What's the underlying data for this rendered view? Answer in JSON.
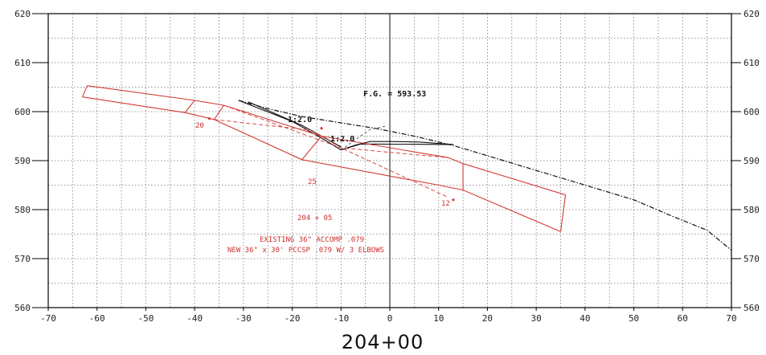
{
  "x_axis": {
    "min": -70,
    "max": 70,
    "step": 10,
    "ticks": [
      "-70",
      "-60",
      "-50",
      "-40",
      "-30",
      "-20",
      "-10",
      "0",
      "10",
      "20",
      "30",
      "40",
      "50",
      "60",
      "70"
    ]
  },
  "y_axis": {
    "min": 560,
    "max": 620,
    "step": 10,
    "ticks": [
      "560",
      "570",
      "580",
      "590",
      "600",
      "610",
      "620"
    ]
  },
  "station_label": "204+00",
  "annotations": {
    "fg": "F.G. = 593.53",
    "slope_upper": "1:2.0",
    "slope_lower": "1:2.0",
    "pt_20": "20",
    "pt_25": "25",
    "pt_12": "12",
    "station_sub": "204 + 05",
    "note_line1": "EXISTING 36\" ACCOMP .079",
    "note_line2": "NEW 36\" x 30' PCCSP .079 W/ 3 ELBOWS"
  },
  "ground_profile": [
    [
      -31,
      602.3
    ],
    [
      -25,
      600.6
    ],
    [
      -18,
      599.0
    ],
    [
      -10,
      597.7
    ],
    [
      -3,
      596.6
    ],
    [
      5,
      595.0
    ],
    [
      13,
      593.1
    ],
    [
      20,
      591.0
    ],
    [
      30,
      588.0
    ],
    [
      40,
      585.0
    ],
    [
      50,
      582.0
    ],
    [
      58,
      578.6
    ],
    [
      65,
      575.8
    ],
    [
      70,
      571.7
    ]
  ],
  "ditch_profile": [
    [
      -31,
      602.3
    ],
    [
      -20,
      598.0
    ],
    [
      -14,
      594.6
    ],
    [
      -10,
      592.2
    ],
    [
      -7,
      593.2
    ],
    [
      -4,
      593.9
    ],
    [
      0,
      593.9
    ],
    [
      6,
      593.8
    ],
    [
      13,
      593.3
    ]
  ],
  "pipe_existing": {
    "upper": [
      [
        -62,
        605.3
      ],
      [
        -40,
        602.3
      ],
      [
        -34,
        601.3
      ],
      [
        -14,
        595.0
      ],
      [
        12,
        590.6
      ],
      [
        15,
        589.4
      ],
      [
        36,
        583.0
      ]
    ],
    "lower": [
      [
        -63,
        603.0
      ],
      [
        -42,
        599.8
      ],
      [
        -36,
        598.4
      ],
      [
        -18,
        590.2
      ],
      [
        10,
        585.0
      ],
      [
        15,
        584.0
      ],
      [
        35,
        575.5
      ]
    ]
  },
  "pipe_dashed": [
    [
      -36,
      598.4
    ],
    [
      -16,
      596.2
    ],
    [
      -10,
      592.6
    ],
    [
      12,
      582.5
    ]
  ]
}
